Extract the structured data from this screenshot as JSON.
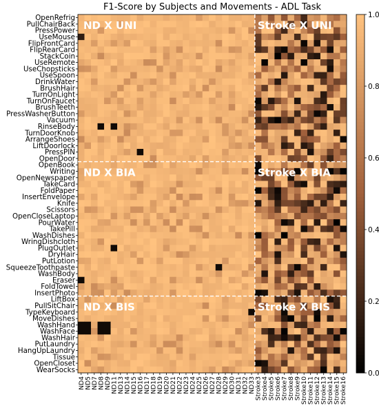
{
  "chart_data": {
    "type": "heatmap",
    "title": "F1-Score by Subjects and Movements - ADL Task",
    "xlabel": "",
    "ylabel": "",
    "y_categories": [
      "OpenRefrig",
      "PullChairBack",
      "PressPower",
      "UseMouse",
      "FlipFrontCard",
      "FlipRearCard",
      "StackCoin",
      "UseRemote",
      "UseChopsticks",
      "UseSpoon",
      "DrinkWater",
      "BrushHair",
      "TurnOnLight",
      "TurnOnFaucet",
      "BrushTeeth",
      "PressWasherButton",
      "Vacuum",
      "RinseBody",
      "TurnDoorKnob",
      "ArrangeShoes",
      "LiftDoorlock",
      "PressPIN",
      "OpenDoor",
      "OpenBook",
      "Writing",
      "OpenNewspaper",
      "TakeCard",
      "FoldPaper",
      "InsertEnvelope",
      "Knife",
      "Scissors",
      "OpenCloseLaptop",
      "PourWater",
      "TakePill",
      "WashDishes",
      "WringDishcloth",
      "PlugOutlet",
      "DryHair",
      "PutLotion",
      "SqueezeToothpaste",
      "WashBody",
      "Eraser",
      "FoldTowel",
      "InsertPhoto",
      "LiftBox",
      "PullSitChair",
      "TypeKeyboard",
      "MoveDishes",
      "WashHand",
      "WashFace",
      "WashHair",
      "PutLaundry",
      "HangUpLaundry",
      "Tissue",
      "OpenCloset",
      "WearSocks"
    ],
    "x_categories": [
      "ND4",
      "ND5",
      "ND7",
      "ND8",
      "ND9",
      "ND11",
      "ND13",
      "ND14",
      "ND15",
      "ND16",
      "ND17",
      "ND18",
      "ND19",
      "ND20",
      "ND21",
      "ND22",
      "ND23",
      "ND24",
      "ND25",
      "ND26",
      "ND27",
      "ND28",
      "ND29",
      "ND30",
      "ND31",
      "ND32",
      "ND33",
      "Stroke3",
      "Stroke4",
      "Stroke5",
      "Stroke6",
      "Stroke7",
      "Stroke8",
      "Stroke9",
      "Stroke10",
      "Stroke11",
      "Stroke12",
      "Stroke13",
      "Stroke14",
      "Stroke15",
      "Stroke16"
    ],
    "colorbar": {
      "min": 0.0,
      "max": 1.0,
      "ticks": [
        "0.0",
        "0.2",
        "0.4",
        "0.6",
        "0.8",
        "1.0"
      ]
    },
    "colormap": {
      "low": "#000000",
      "mid": "#a0603c",
      "high": "#ffc27f"
    },
    "region_labels": [
      "ND X UNI",
      "Stroke X UNI",
      "ND X BIA",
      "Stroke X BIA",
      "ND X BIS",
      "Stroke X BIS"
    ],
    "divider_color": "#ffffff",
    "value_summary": {
      "nd_typical": 0.92,
      "stroke_typical": 0.55
    },
    "notable_low_cells": [
      {
        "movement": "UseMouse",
        "subject": "ND4",
        "value": 0.15
      },
      {
        "movement": "RinseBody",
        "subject": "ND8",
        "value": 0.05
      },
      {
        "movement": "RinseBody",
        "subject": "ND11",
        "value": 0.05
      },
      {
        "movement": "PressPIN",
        "subject": "ND16",
        "value": 0.05
      },
      {
        "movement": "PlugOutlet",
        "subject": "ND11",
        "value": 0.05
      },
      {
        "movement": "SqueezeToothpaste",
        "subject": "ND28",
        "value": 0.05
      },
      {
        "movement": "Eraser",
        "subject": "ND4",
        "value": 0.05
      },
      {
        "movement": "TypeKeyboard",
        "subject": "ND33",
        "value": 0.05
      },
      {
        "movement": "WashHand",
        "subject": "ND4",
        "value": 0.05
      },
      {
        "movement": "WashHand",
        "subject": "ND5",
        "value": 0.05
      },
      {
        "movement": "WashHand",
        "subject": "ND8",
        "value": 0.05
      },
      {
        "movement": "WashHand",
        "subject": "ND9",
        "value": 0.05
      },
      {
        "movement": "WashFace",
        "subject": "ND4",
        "value": 0.05
      },
      {
        "movement": "WashFace",
        "subject": "ND5",
        "value": 0.05
      },
      {
        "movement": "WashFace",
        "subject": "ND8",
        "value": 0.05
      },
      {
        "movement": "WashFace",
        "subject": "ND9",
        "value": 0.05
      }
    ]
  }
}
